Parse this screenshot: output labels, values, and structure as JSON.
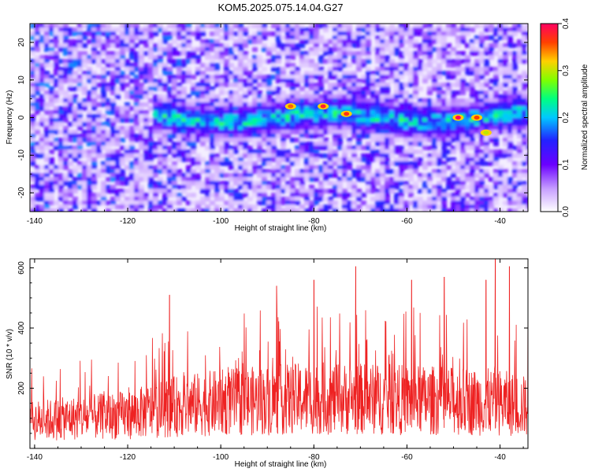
{
  "title": "KOM5.2025.075.14.04.G27",
  "chart_data": [
    {
      "type": "heatmap",
      "xlabel": "Height of straight line (km)",
      "ylabel": "Frequency (Hz)",
      "xlim": [
        -141,
        -34
      ],
      "ylim": [
        -25,
        25
      ],
      "xticks": [
        -140,
        -120,
        -100,
        -80,
        -60,
        -40
      ],
      "xtick_labels": [
        "-140",
        "-120",
        "-100",
        "-80",
        "-60",
        "-40"
      ],
      "yticks": [
        -20,
        -10,
        0,
        10,
        20
      ],
      "ytick_labels": [
        "-20",
        "-10",
        "0",
        "10",
        "20"
      ],
      "colorbar": {
        "label": "Normalized spectral amplitude",
        "range": [
          0,
          0.4
        ],
        "ticks": [
          0,
          0.1,
          0.2,
          0.3,
          0.4
        ],
        "tick_labels": [
          "0.0",
          "0.1",
          "0.2",
          "0.3",
          "0.4"
        ],
        "colors": [
          "#ffffff",
          "#b080ff",
          "#6a00ff",
          "#2222ff",
          "#00c8ff",
          "#00ff80",
          "#80ff00",
          "#ffd000",
          "#ff4000",
          "#ff0060"
        ]
      },
      "signal_band": {
        "x_start": -115,
        "x_end": -34,
        "frequency": 0
      },
      "hot_spots": [
        {
          "x": -85,
          "y": 3,
          "value": 0.35
        },
        {
          "x": -78,
          "y": 3,
          "value": 0.38
        },
        {
          "x": -73,
          "y": 1,
          "value": 0.37
        },
        {
          "x": -49,
          "y": 0,
          "value": 0.4
        },
        {
          "x": -45,
          "y": 0,
          "value": 0.36
        },
        {
          "x": -43,
          "y": -4,
          "value": 0.3
        }
      ]
    },
    {
      "type": "line",
      "xlabel": "Height of straight line (km)",
      "ylabel": "SNR (10 * v/v)",
      "xlim": [
        -141,
        -34
      ],
      "ylim": [
        0,
        630
      ],
      "xticks": [
        -140,
        -120,
        -100,
        -80,
        -60,
        -40
      ],
      "xtick_labels": [
        "-140",
        "-120",
        "-100",
        "-80",
        "-60",
        "-40"
      ],
      "yticks": [
        200,
        400,
        600
      ],
      "ytick_labels": [
        "200",
        "400",
        "600"
      ],
      "color": "#ee2222",
      "envelope": [
        {
          "x": -140,
          "y": 100
        },
        {
          "x": -120,
          "y": 120
        },
        {
          "x": -110,
          "y": 150
        },
        {
          "x": -100,
          "y": 165
        },
        {
          "x": -80,
          "y": 180
        },
        {
          "x": -60,
          "y": 175
        },
        {
          "x": -40,
          "y": 165
        },
        {
          "x": -34,
          "y": 150
        }
      ],
      "peaks": [
        {
          "x": -111,
          "y": 510
        },
        {
          "x": -88,
          "y": 540
        },
        {
          "x": -80,
          "y": 560
        },
        {
          "x": -71,
          "y": 605
        },
        {
          "x": -59,
          "y": 560
        },
        {
          "x": -52,
          "y": 570
        },
        {
          "x": -43,
          "y": 560
        },
        {
          "x": -41,
          "y": 630
        },
        {
          "x": -38,
          "y": 605
        },
        {
          "x": -34,
          "y": 500
        }
      ]
    }
  ]
}
